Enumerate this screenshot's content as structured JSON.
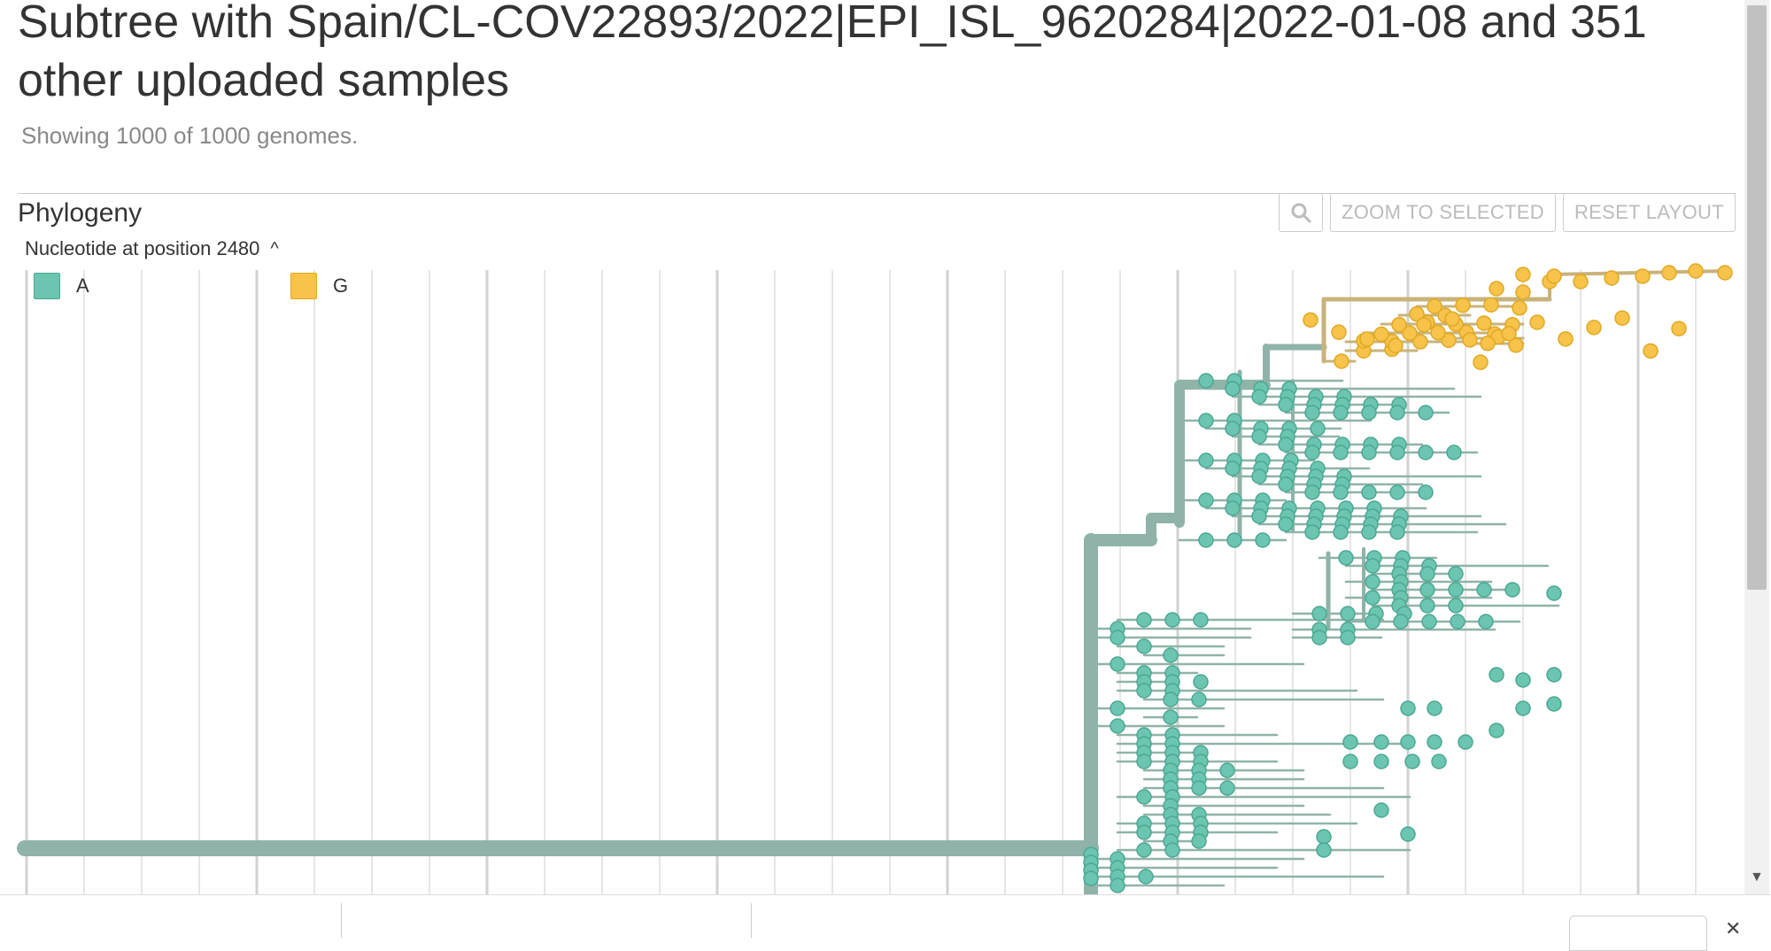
{
  "header": {
    "title": "Subtree with Spain/CL-COV22893/2022|EPI_ISL_9620284|2022-01-08 and 351 other uploaded samples",
    "subtitle": "Showing 1000 of 1000 genomes."
  },
  "panel": {
    "title": "Phylogeny",
    "zoom_label": "ZOOM TO SELECTED",
    "reset_label": "RESET LAYOUT",
    "color_by": "Nucleotide at position 2480"
  },
  "legend": [
    {
      "label": "A",
      "color": "#6cc5b0"
    },
    {
      "label": "G",
      "color": "#f7c34a"
    }
  ],
  "colors": {
    "branch_a": "#8fb3a8",
    "branch_g": "#c8b37b",
    "tip_a": "#6cc5b0",
    "tip_a_stroke": "#4aa892",
    "tip_g": "#f7c34a",
    "tip_g_stroke": "#e0a923",
    "grid": "#e6e6e6",
    "grid_major": "#d2d2d2"
  }
}
